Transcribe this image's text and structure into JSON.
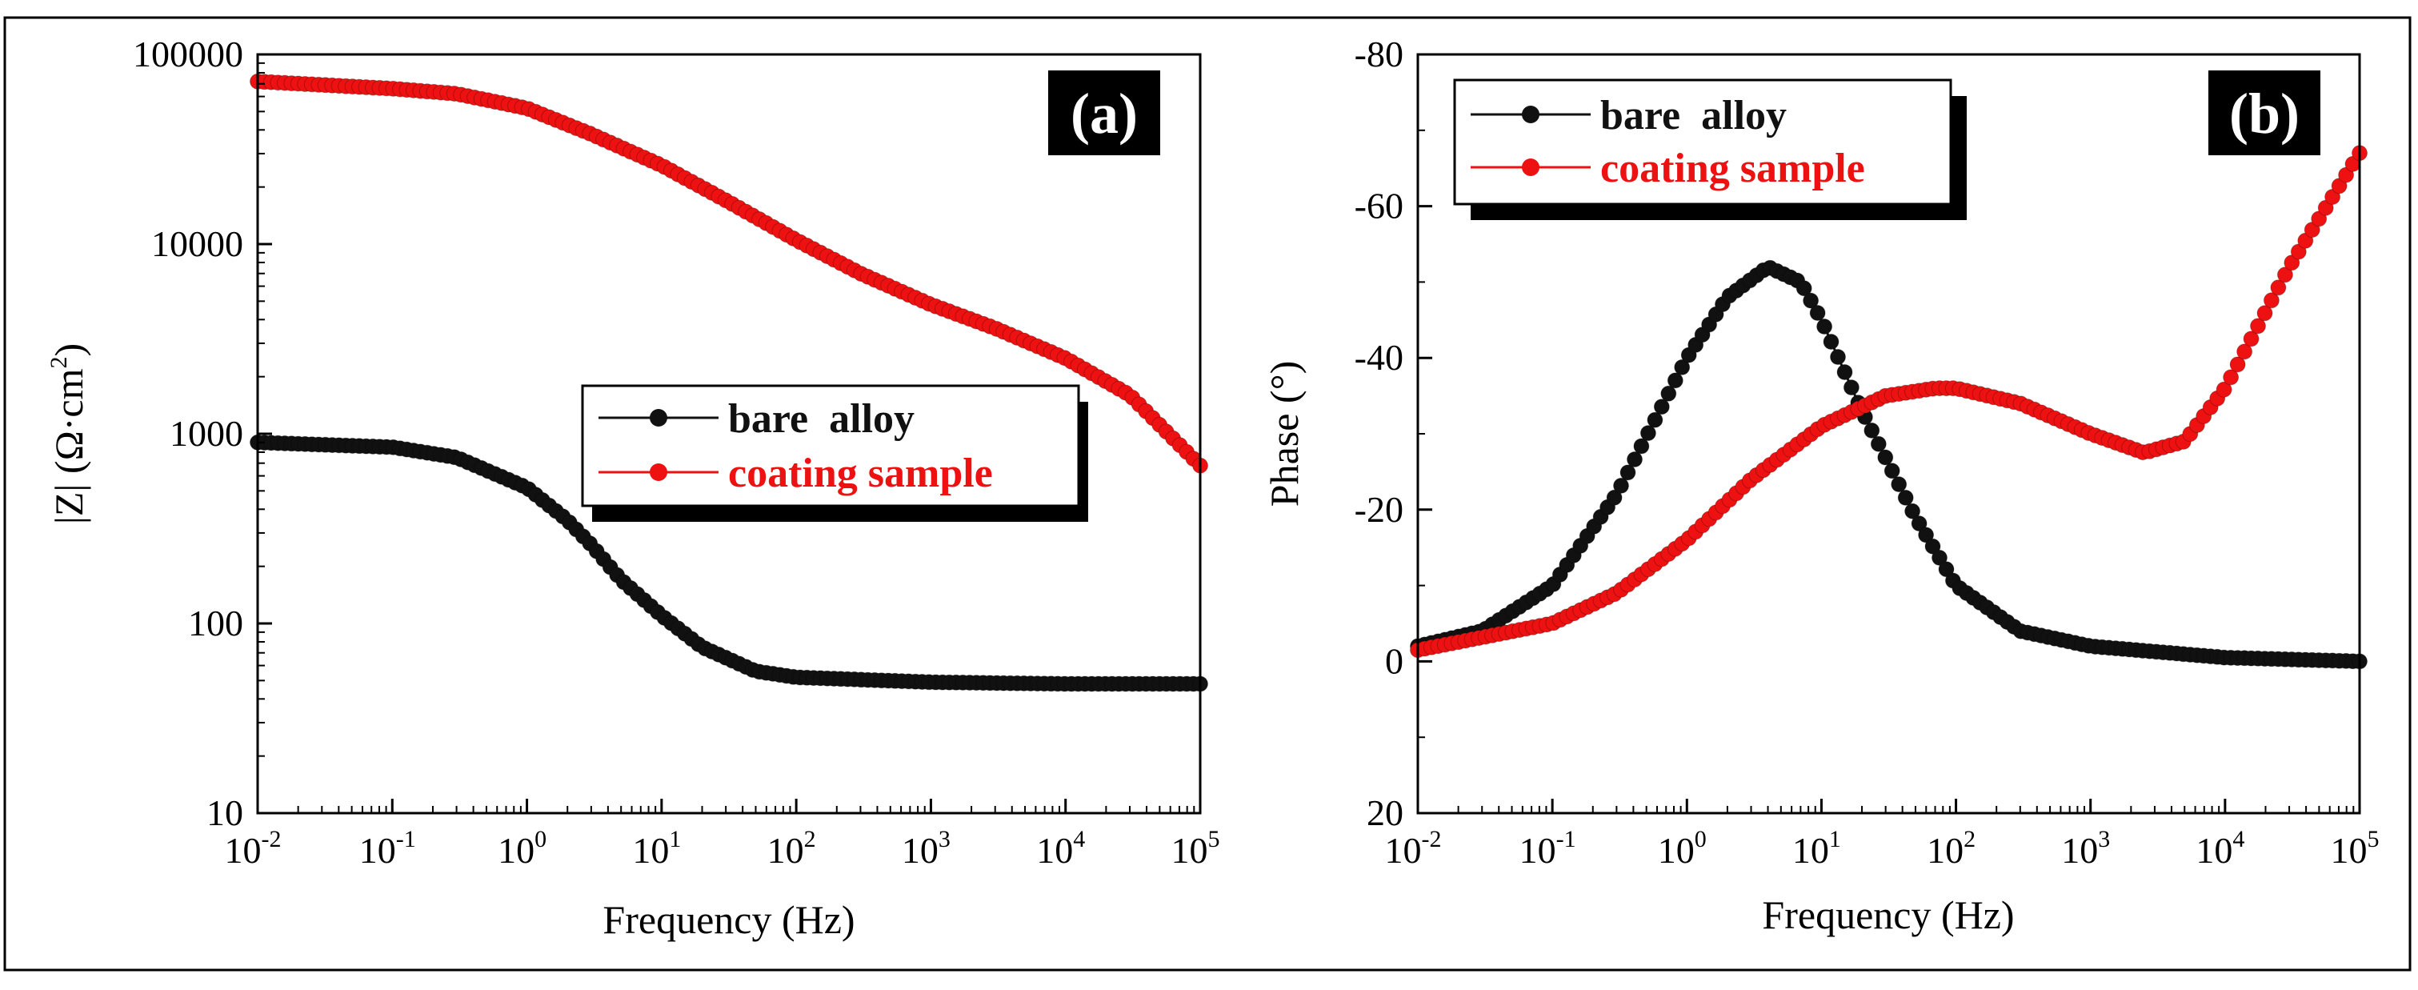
{
  "figure": {
    "colors": {
      "bare": "#111111",
      "coating": "#ee1111",
      "frame": "#000000"
    },
    "legend_entries": [
      "bare  alloy",
      "coating sample"
    ]
  },
  "chart_data": [
    {
      "id": "a",
      "type": "scatter",
      "panel_label": "(a)",
      "title": "",
      "xlabel": "Frequency (Hz)",
      "ylabel_main": "|Z| (Ω·cm",
      "ylabel_sup": "2",
      "ylabel_close": ")",
      "xscale": "log",
      "yscale": "log",
      "xlim": [
        0.01,
        100000
      ],
      "ylim": [
        10,
        100000
      ],
      "x_ticks": [
        {
          "base": "10",
          "exp": "-2",
          "value": 0.01
        },
        {
          "base": "10",
          "exp": "-1",
          "value": 0.1
        },
        {
          "base": "10",
          "exp": "0",
          "value": 1
        },
        {
          "base": "10",
          "exp": "1",
          "value": 10
        },
        {
          "base": "10",
          "exp": "2",
          "value": 100
        },
        {
          "base": "10",
          "exp": "3",
          "value": 1000
        },
        {
          "base": "10",
          "exp": "4",
          "value": 10000
        },
        {
          "base": "10",
          "exp": "5",
          "value": 100000
        }
      ],
      "y_ticks": [
        {
          "label": "10",
          "value": 10
        },
        {
          "label": "100",
          "value": 100
        },
        {
          "label": "1000",
          "value": 1000
        },
        {
          "label": "10000",
          "value": 10000
        },
        {
          "label": "100000",
          "value": 100000
        }
      ],
      "legend_position": "center-right",
      "series": [
        {
          "name": "bare  alloy",
          "color": "#111111",
          "x": [
            0.01,
            0.1,
            0.3,
            1,
            2,
            3,
            5,
            10,
            20,
            50,
            100,
            1000,
            10000,
            100000
          ],
          "y": [
            900,
            850,
            750,
            520,
            350,
            260,
            170,
            110,
            75,
            56,
            52,
            49,
            48,
            48
          ]
        },
        {
          "name": "coating sample",
          "color": "#ee1111",
          "x": [
            0.01,
            0.1,
            0.3,
            1,
            3,
            10,
            30,
            100,
            300,
            1000,
            3000,
            10000,
            30000,
            100000
          ],
          "y": [
            72000,
            66000,
            62000,
            52000,
            38000,
            26000,
            17000,
            10500,
            7000,
            4800,
            3600,
            2500,
            1600,
            680
          ]
        }
      ]
    },
    {
      "id": "b",
      "type": "scatter",
      "panel_label": "(b)",
      "title": "",
      "xlabel": "Frequency (Hz)",
      "ylabel": "Phase (°)",
      "xscale": "log",
      "yscale": "linear",
      "y_inverted": true,
      "xlim": [
        0.01,
        100000
      ],
      "ylim": [
        20,
        -80
      ],
      "x_ticks": [
        {
          "base": "10",
          "exp": "-2",
          "value": 0.01
        },
        {
          "base": "10",
          "exp": "-1",
          "value": 0.1
        },
        {
          "base": "10",
          "exp": "0",
          "value": 1
        },
        {
          "base": "10",
          "exp": "1",
          "value": 10
        },
        {
          "base": "10",
          "exp": "2",
          "value": 100
        },
        {
          "base": "10",
          "exp": "3",
          "value": 1000
        },
        {
          "base": "10",
          "exp": "4",
          "value": 10000
        },
        {
          "base": "10",
          "exp": "5",
          "value": 100000
        }
      ],
      "y_ticks": [
        {
          "label": "-80",
          "value": -80
        },
        {
          "label": "-60",
          "value": -60
        },
        {
          "label": "-40",
          "value": -40
        },
        {
          "label": "-20",
          "value": -20
        },
        {
          "label": "0",
          "value": 0
        },
        {
          "label": "20",
          "value": 20
        }
      ],
      "legend_position": "top-left",
      "series": [
        {
          "name": "bare  alloy",
          "color": "#111111",
          "x": [
            0.01,
            0.03,
            0.1,
            0.3,
            1,
            2,
            4,
            7,
            10,
            20,
            50,
            100,
            300,
            1000,
            10000,
            100000
          ],
          "y": [
            -2,
            -4,
            -10,
            -22,
            -40,
            -48,
            -52,
            -50,
            -45,
            -33,
            -19,
            -10,
            -4,
            -2,
            -0.5,
            0
          ]
        },
        {
          "name": "coating sample",
          "color": "#ee1111",
          "x": [
            0.01,
            0.1,
            0.3,
            1,
            3,
            10,
            30,
            70,
            100,
            300,
            1000,
            2500,
            5000,
            10000,
            30000,
            100000
          ],
          "y": [
            -1.5,
            -5,
            -9,
            -16,
            -24,
            -31,
            -35,
            -36,
            -36,
            -34,
            -30,
            -27.5,
            -29,
            -36,
            -52,
            -67
          ]
        }
      ]
    }
  ]
}
